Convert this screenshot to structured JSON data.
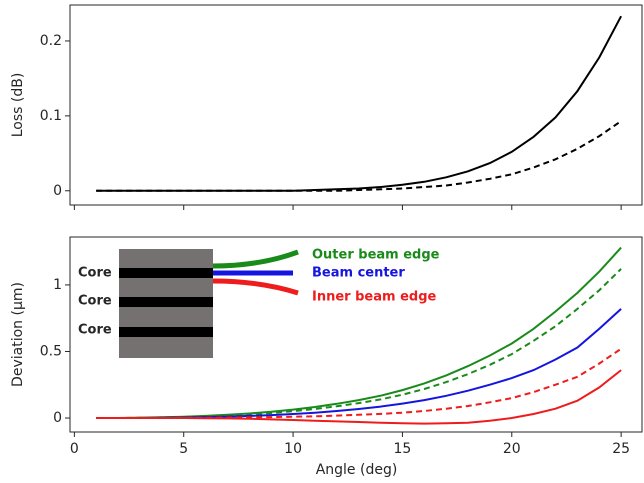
{
  "chart_data": [
    {
      "type": "line",
      "ylabel": "Loss (dB)",
      "x": [
        1,
        2,
        3,
        4,
        5,
        6,
        7,
        8,
        9,
        10,
        11,
        12,
        13,
        14,
        15,
        16,
        17,
        18,
        19,
        20,
        21,
        22,
        23,
        24,
        25
      ],
      "xlim": [
        -0.2,
        26
      ],
      "xticks": [
        0,
        5,
        10,
        15,
        20,
        25
      ],
      "xtick_labels": false,
      "ylim": [
        -0.019,
        0.248
      ],
      "yticks": [
        0.0,
        0.1,
        0.2
      ],
      "series": [
        {
          "color": "#000000",
          "style": "solid",
          "values": [
            0,
            0,
            0,
            0,
            0,
            0,
            0,
            0,
            0,
            0,
            0.001,
            0.002,
            0.003,
            0.005,
            0.008,
            0.012,
            0.018,
            0.026,
            0.037,
            0.052,
            0.072,
            0.098,
            0.133,
            0.178,
            0.233
          ]
        },
        {
          "color": "#000000",
          "style": "dashed",
          "values": [
            0,
            0,
            0,
            0,
            0,
            0,
            0,
            0,
            0,
            0,
            0,
            0,
            0.001,
            0.002,
            0.003,
            0.005,
            0.007,
            0.011,
            0.016,
            0.022,
            0.031,
            0.042,
            0.056,
            0.073,
            0.093
          ]
        }
      ]
    },
    {
      "type": "line",
      "ylabel": "Deviation (µm)",
      "xlabel": "Angle (deg)",
      "x": [
        1,
        2,
        3,
        4,
        5,
        6,
        7,
        8,
        9,
        10,
        11,
        12,
        13,
        14,
        15,
        16,
        17,
        18,
        19,
        20,
        21,
        22,
        23,
        24,
        25
      ],
      "xlim": [
        -0.2,
        26
      ],
      "xticks": [
        0,
        5,
        10,
        15,
        20,
        25
      ],
      "xtick_labels": true,
      "ylim": [
        -0.105,
        1.36
      ],
      "yticks": [
        0.0,
        0.5,
        1.0
      ],
      "series": [
        {
          "name": "Outer beam edge",
          "color": "#1a8a1a",
          "style": "solid",
          "values": [
            0,
            0,
            0.003,
            0.006,
            0.01,
            0.016,
            0.024,
            0.034,
            0.047,
            0.063,
            0.083,
            0.107,
            0.135,
            0.168,
            0.21,
            0.26,
            0.32,
            0.39,
            0.47,
            0.56,
            0.67,
            0.8,
            0.94,
            1.1,
            1.28
          ]
        },
        {
          "color": "#1a8a1a",
          "style": "dashed",
          "values": [
            0,
            0,
            0.002,
            0.005,
            0.008,
            0.013,
            0.019,
            0.027,
            0.038,
            0.051,
            0.068,
            0.088,
            0.112,
            0.14,
            0.175,
            0.218,
            0.27,
            0.33,
            0.4,
            0.48,
            0.58,
            0.69,
            0.82,
            0.96,
            1.12
          ]
        },
        {
          "name": "Beam center",
          "color": "#1515e0",
          "style": "solid",
          "values": [
            0,
            0,
            0,
            0.002,
            0.004,
            0.007,
            0.011,
            0.016,
            0.022,
            0.03,
            0.04,
            0.053,
            0.068,
            0.086,
            0.108,
            0.135,
            0.167,
            0.205,
            0.25,
            0.3,
            0.36,
            0.44,
            0.53,
            0.67,
            0.82
          ]
        },
        {
          "color": "#ee1c1c",
          "style": "dashed",
          "values": [
            0,
            0,
            0,
            0,
            0.001,
            0.002,
            0.003,
            0.005,
            0.007,
            0.01,
            0.013,
            0.018,
            0.024,
            0.031,
            0.04,
            0.053,
            0.07,
            0.09,
            0.118,
            0.15,
            0.195,
            0.25,
            0.31,
            0.41,
            0.52
          ]
        },
        {
          "name": "Inner beam edge",
          "color": "#ee1c1c",
          "style": "solid",
          "values": [
            0,
            0,
            0,
            0,
            0,
            -0.001,
            -0.003,
            -0.005,
            -0.01,
            -0.015,
            -0.02,
            -0.025,
            -0.03,
            -0.035,
            -0.04,
            -0.042,
            -0.04,
            -0.035,
            -0.02,
            0,
            0.03,
            0.07,
            0.13,
            0.23,
            0.36
          ]
        }
      ],
      "inset_labels": [
        "Core",
        "Core",
        "Core"
      ]
    }
  ]
}
